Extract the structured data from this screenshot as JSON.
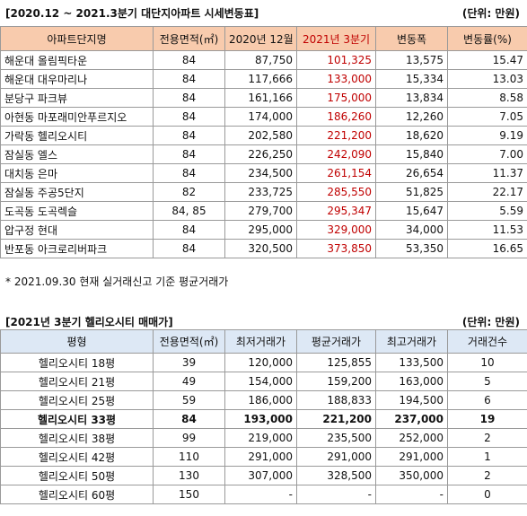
{
  "table1": {
    "title": "[2020.12 ~ 2021.3분기 대단지아파트 시세변동표]",
    "unit": "(단위: 만원)",
    "headers": [
      "아파트단지명",
      "전용면적(㎡)",
      "2020년 12월",
      "2021년 3분기",
      "변동폭",
      "변동률(%)"
    ],
    "rows": [
      [
        "해운대 올림픽타운",
        "84",
        "87,750",
        "101,325",
        "13,575",
        "15.47"
      ],
      [
        "해운대 대우마리나",
        "84",
        "117,666",
        "133,000",
        "15,334",
        "13.03"
      ],
      [
        "분당구 파크뷰",
        "84",
        "161,166",
        "175,000",
        "13,834",
        "8.58"
      ],
      [
        "아현동 마포래미안푸르지오",
        "84",
        "174,000",
        "186,260",
        "12,260",
        "7.05"
      ],
      [
        "가락동 헬리오시티",
        "84",
        "202,580",
        "221,200",
        "18,620",
        "9.19"
      ],
      [
        "잠실동 엘스",
        "84",
        "226,250",
        "242,090",
        "15,840",
        "7.00"
      ],
      [
        "대치동 은마",
        "84",
        "234,500",
        "261,154",
        "26,654",
        "11.37"
      ],
      [
        "잠실동 주공5단지",
        "82",
        "233,725",
        "285,550",
        "51,825",
        "22.17"
      ],
      [
        "도곡동 도곡렉슬",
        "84, 85",
        "279,700",
        "295,347",
        "15,647",
        "5.59"
      ],
      [
        "압구정 현대",
        "84",
        "295,000",
        "329,000",
        "34,000",
        "11.53"
      ],
      [
        "반포동 아크로리버파크",
        "84",
        "320,500",
        "373,850",
        "53,350",
        "16.65"
      ]
    ],
    "highlight_color": "#c00000"
  },
  "note": "* 2021.09.30 현재 실거래신고 기준 평균거래가",
  "table2": {
    "title": "[2021년 3분기 헬리오시티 매매가]",
    "unit": "(단위: 만원)",
    "headers": [
      "평형",
      "전용면적(㎡)",
      "최저거래가",
      "평균거래가",
      "최고거래가",
      "거래건수"
    ],
    "rows": [
      [
        "헬리오시티 18평",
        "39",
        "120,000",
        "125,855",
        "133,500",
        "10"
      ],
      [
        "헬리오시티 21평",
        "49",
        "154,000",
        "159,200",
        "163,000",
        "5"
      ],
      [
        "헬리오시티 25평",
        "59",
        "186,000",
        "188,833",
        "194,500",
        "6"
      ],
      [
        "헬리오시티 33평",
        "84",
        "193,000",
        "221,200",
        "237,000",
        "19"
      ],
      [
        "헬리오시티 38평",
        "99",
        "219,000",
        "235,500",
        "252,000",
        "2"
      ],
      [
        "헬리오시티 42평",
        "110",
        "291,000",
        "291,000",
        "291,000",
        "1"
      ],
      [
        "헬리오시티 50평",
        "130",
        "307,000",
        "328,500",
        "350,000",
        "2"
      ],
      [
        "헬리오시티 60평",
        "150",
        "-",
        "-",
        "-",
        "0"
      ]
    ],
    "bold_row_index": 3
  }
}
